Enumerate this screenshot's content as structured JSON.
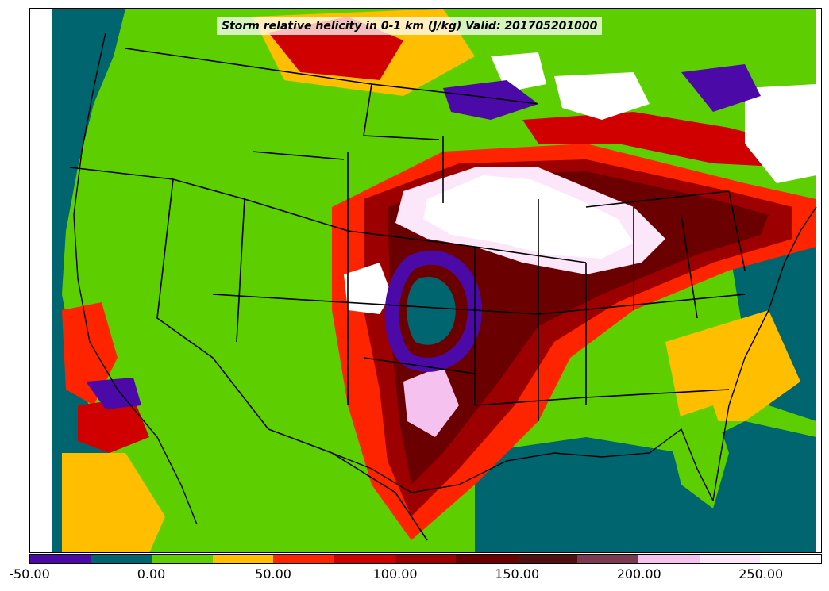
{
  "map": {
    "title": "Storm relative helicity in 0-1 km (J/kg) Valid: 201705201000"
  },
  "colorbar": {
    "colors": [
      "#4b0aa8",
      "#00656e",
      "#5dcf00",
      "#ffbf00",
      "#ff2400",
      "#d10000",
      "#9c0000",
      "#6b0000",
      "#501010",
      "#7a3b50",
      "#f5c2f0",
      "#fbe6fa",
      "#ffffff"
    ],
    "ticks": [
      "-50.00",
      "0.00",
      "50.00",
      "100.00",
      "150.00",
      "200.00",
      "250.00"
    ]
  }
}
